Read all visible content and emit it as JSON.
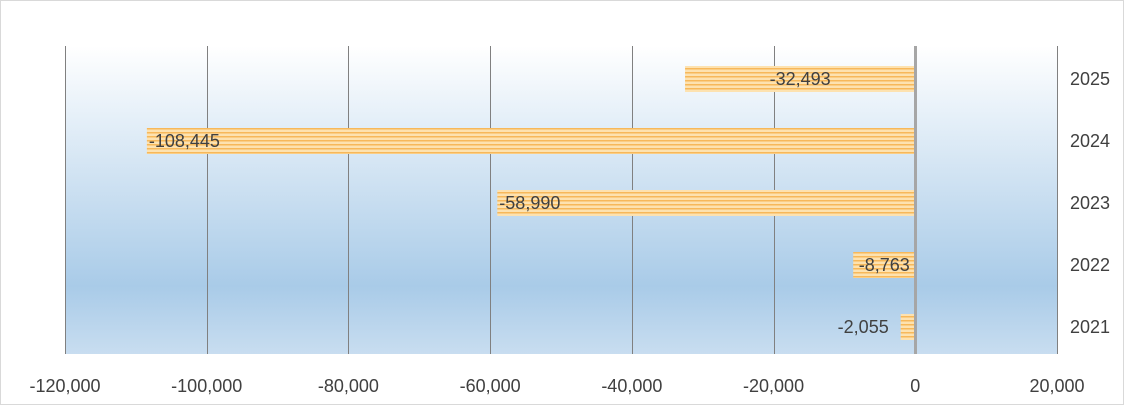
{
  "chart_data": {
    "type": "bar",
    "orientation": "horizontal",
    "categories": [
      "2025",
      "2024",
      "2023",
      "2022",
      "2021"
    ],
    "values": [
      -32493,
      -108445,
      -58990,
      -8763,
      -2055
    ],
    "value_labels": [
      "-32,493",
      "-108,445",
      "-58,990",
      "-8,763",
      "-2,055"
    ],
    "xlim": [
      -120000,
      20000
    ],
    "x_ticks": [
      -120000,
      -100000,
      -80000,
      -60000,
      -40000,
      -20000,
      0,
      20000
    ],
    "x_tick_labels": [
      "-120,000",
      "-100,000",
      "-80,000",
      "-60,000",
      "-40,000",
      "-20,000",
      "0",
      "20,000"
    ],
    "category_axis_position": "right",
    "grid": "vertical",
    "legend": "none",
    "title": "",
    "xlabel": "",
    "ylabel": "",
    "colors": {
      "bar_fill": "#fde2b0",
      "bar_stripe": "#f7b85a",
      "plot_bg_top": "#ffffff",
      "plot_bg_bottom": "#a9cbe8",
      "gridline": "#808080",
      "zero_line": "#a6a6a6",
      "frame": "#d9d9d9",
      "text": "#404040"
    }
  }
}
